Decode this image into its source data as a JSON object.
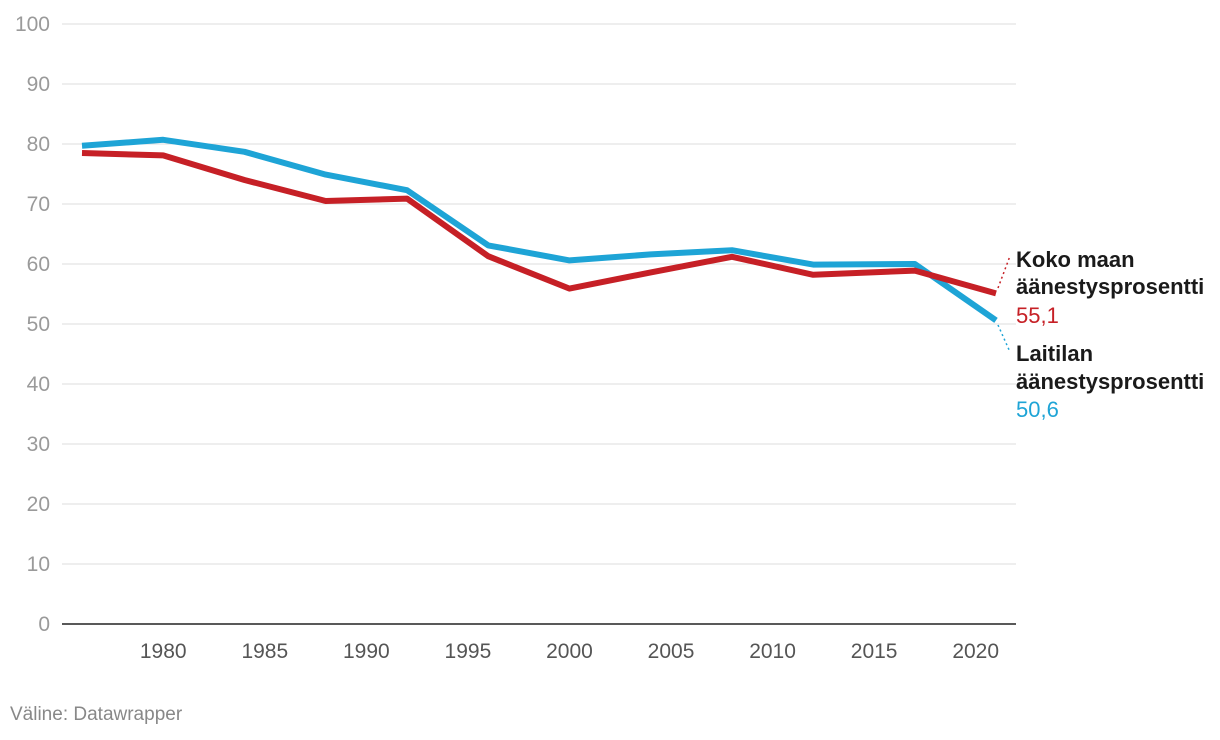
{
  "chart_data": {
    "type": "line",
    "title": "",
    "xlabel": "",
    "ylabel": "",
    "ylim": [
      0,
      100
    ],
    "xlim": [
      1975,
      2022
    ],
    "yticks": [
      "0",
      "10",
      "20",
      "30",
      "40",
      "50",
      "60",
      "70",
      "80",
      "90",
      "100"
    ],
    "xticks": [
      "1980",
      "1985",
      "1990",
      "1995",
      "2000",
      "2005",
      "2010",
      "2015",
      "2020"
    ],
    "grid": true,
    "series": [
      {
        "key": "laitila",
        "name": "Laitilan äänestysprosentti",
        "value_label": "50,6",
        "color": "#1ea4d6",
        "x": [
          1976,
          1980,
          1984,
          1988,
          1992,
          1996,
          2000,
          2004,
          2008,
          2012,
          2017,
          2021
        ],
        "y": [
          79.7,
          80.7,
          78.7,
          74.9,
          72.3,
          63.1,
          60.6,
          61.6,
          62.3,
          59.9,
          60.0,
          50.6
        ]
      },
      {
        "key": "koko",
        "name": "Koko maan äänestysprosentti",
        "value_label": "55,1",
        "color": "#c62026",
        "x": [
          1976,
          1980,
          1984,
          1988,
          1992,
          1996,
          2000,
          2004,
          2008,
          2012,
          2017,
          2021
        ],
        "y": [
          78.5,
          78.1,
          74.0,
          70.5,
          70.9,
          61.3,
          55.9,
          58.6,
          61.2,
          58.2,
          58.9,
          55.1
        ]
      }
    ]
  },
  "labels": {
    "koko_line1": "Koko maan",
    "koko_line2": "äänestysprosentti",
    "koko_value": "55,1",
    "laitila_line1": "Laitilan",
    "laitila_line2": "äänestysprosentti",
    "laitila_value": "50,6"
  },
  "footer": {
    "source": "Väline: Datawrapper"
  }
}
